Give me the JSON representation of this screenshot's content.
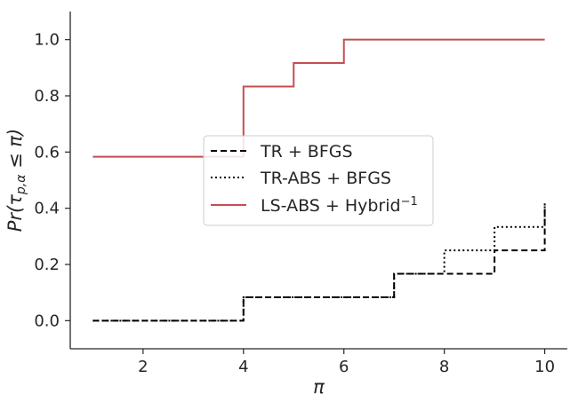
{
  "chart_data": {
    "type": "line",
    "title": "",
    "xlabel": "π",
    "ylabel_parts": {
      "main": "Pr(τ",
      "sub": "p,α",
      "rest": " ≤ π)"
    },
    "xlim": [
      0.55,
      10.45
    ],
    "ylim": [
      -0.1,
      1.1
    ],
    "x_ticks": [
      2,
      4,
      6,
      8,
      10
    ],
    "x_tick_labels": [
      "2",
      "4",
      "6",
      "8",
      "10"
    ],
    "y_ticks": [
      0.0,
      0.2,
      0.4,
      0.6,
      0.8,
      1.0
    ],
    "y_tick_labels": [
      "0.0",
      "0.2",
      "0.4",
      "0.6",
      "0.8",
      "1.0"
    ],
    "grid": false,
    "legend_placement": "center-right",
    "step": "post",
    "series": [
      {
        "name": "TR + BFGS",
        "style": "dashed",
        "color": "#000000",
        "x": [
          1,
          4,
          7,
          9,
          10
        ],
        "y": [
          0.0,
          0.0833,
          0.1667,
          0.25,
          0.4167
        ]
      },
      {
        "name": "TR-ABS + BFGS",
        "style": "dotted",
        "color": "#000000",
        "x": [
          1,
          4,
          7,
          8,
          9,
          10
        ],
        "y": [
          0.0,
          0.0833,
          0.1667,
          0.25,
          0.3333,
          0.4167
        ]
      },
      {
        "name": "LS-ABS + Hybrid",
        "name_sup": "−1",
        "style": "solid",
        "color": "#c44e52",
        "x": [
          1,
          4,
          5,
          6,
          10
        ],
        "y": [
          0.5833,
          0.8333,
          0.9167,
          1.0,
          1.0
        ]
      }
    ]
  }
}
